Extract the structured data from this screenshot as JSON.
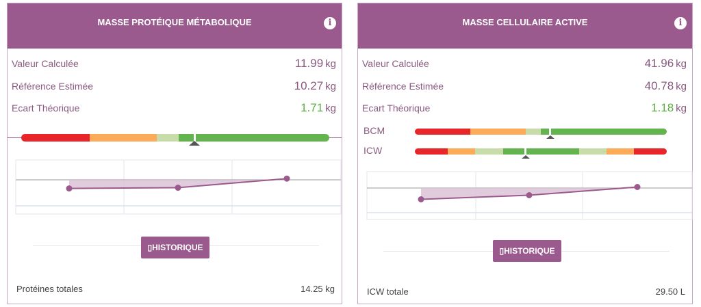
{
  "colors": {
    "header": "#9b5a8d",
    "red": "#e8262a",
    "orange": "#fbab5a",
    "light_green": "#c7dca8",
    "green": "#63b34f"
  },
  "left": {
    "title": "MASSE PROTÉIQUE MÉTABOLIQUE",
    "info_icon": "i",
    "rows": [
      {
        "label": "Valeur Calculée",
        "value": "11.99",
        "unit": "kg"
      },
      {
        "label": "Référence Estimée",
        "value": "10.27",
        "unit": "kg"
      },
      {
        "label": "Ecart Théorique",
        "value": "1.71",
        "unit": "kg"
      }
    ],
    "button": "▯HISTORIQUE",
    "footer_label": "Protéines totales",
    "footer_value": "14.25 kg",
    "history": [
      -0.35,
      -0.32,
      0.05
    ]
  },
  "right": {
    "title": "MASSE CELLULAIRE ACTIVE",
    "info_icon": "i",
    "rows": [
      {
        "label": "Valeur Calculée",
        "value": "41.96",
        "unit": "kg"
      },
      {
        "label": "Référence Estimée",
        "value": "40.78",
        "unit": "kg"
      },
      {
        "label": "Ecart Théorique",
        "value": "1.18",
        "unit": "kg"
      }
    ],
    "gauges": [
      {
        "label": "BCM"
      },
      {
        "label": "ICW"
      }
    ],
    "button": "▯HISTORIQUE",
    "footer_label": "ICW totale",
    "footer_value": "29.50 L",
    "history": [
      -0.55,
      -0.35,
      0.05
    ]
  }
}
